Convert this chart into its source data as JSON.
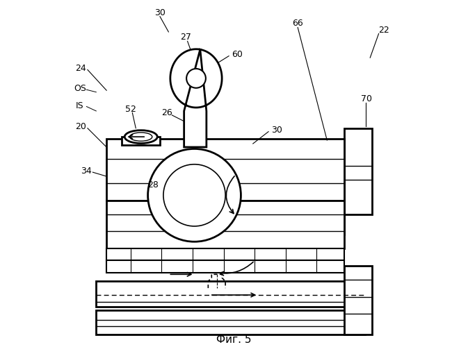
{
  "title": "Фиг. 5",
  "background_color": "#ffffff",
  "line_color": "#000000",
  "lw": 1.5,
  "lw2": 2.0
}
